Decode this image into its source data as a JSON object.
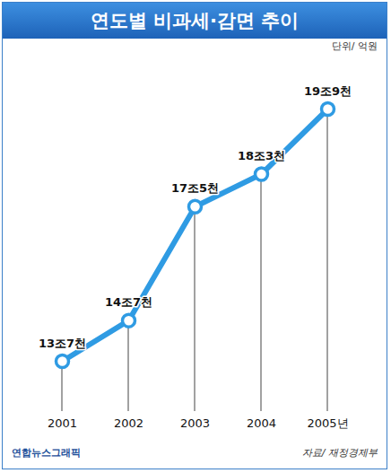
{
  "chart_data": {
    "type": "line",
    "title": "연도별 비과세·감면 추이",
    "subtitle": "단위/ 억원",
    "categories": [
      "2001",
      "2002",
      "2003",
      "2004",
      "2005년"
    ],
    "values": [
      137000,
      147000,
      175000,
      183000,
      199000
    ],
    "value_labels": [
      "13조7천",
      "14조7천",
      "17조5천",
      "18조3천",
      "19조9천"
    ],
    "color": "#2f9be3",
    "marker": "circle",
    "data_labels": true,
    "tick_labels": "x",
    "source": "자료/ 재정경제부",
    "credit": "연합뉴스그래픽"
  }
}
